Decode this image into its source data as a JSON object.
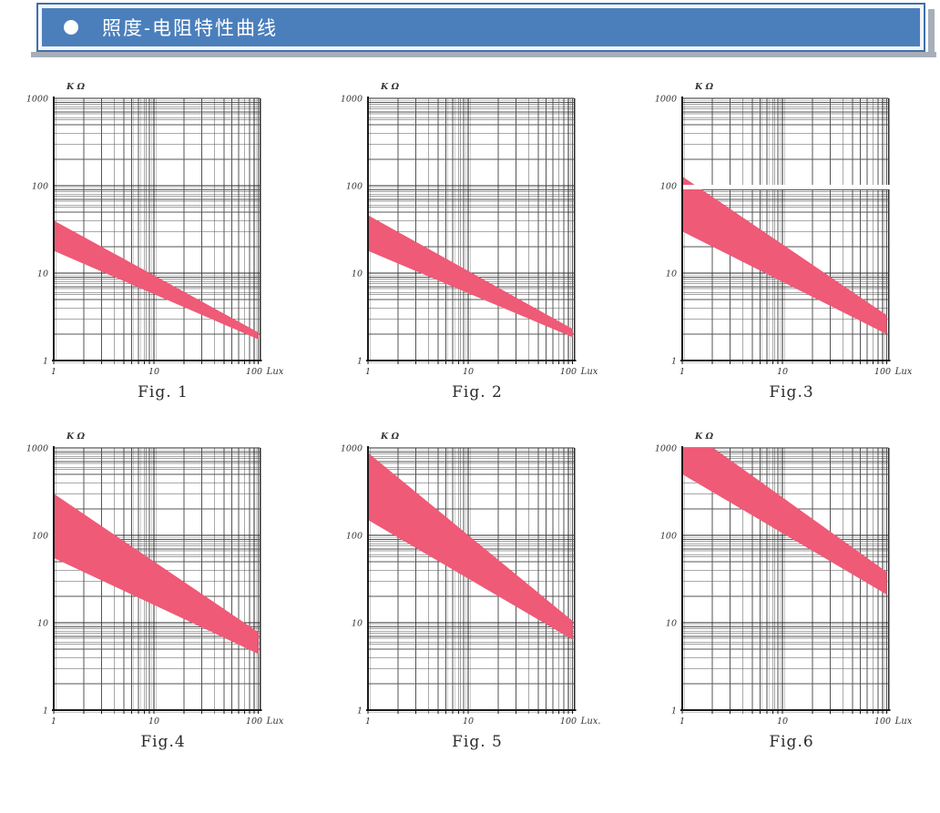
{
  "header": {
    "title": "照度-电阻特性曲线",
    "bar_color": "#4b7fbc",
    "border_color": "#3f6fae",
    "shadow_color": "#a7aeb9",
    "text_color": "#ffffff"
  },
  "chart_style": {
    "band_color": "#ef5a76",
    "grid_minor_color": "#555555",
    "grid_major_color": "#2b2b2b",
    "axis_color": "#1a1a1a",
    "label_color": "#333333"
  },
  "chart_data": [
    {
      "type": "area",
      "fig_label": "Fig. 1",
      "ylabel": "K Ω",
      "xlabel": "Lux",
      "x_tick_labels": [
        "1",
        "10",
        "100"
      ],
      "y_tick_labels": [
        "1000",
        "100",
        "10",
        "1"
      ],
      "xlim": [
        1,
        115
      ],
      "ylim": [
        1,
        1000
      ],
      "log_log": true,
      "grid": true,
      "band_x": [
        1,
        110
      ],
      "band_upper": [
        40,
        2.1
      ],
      "band_lower": [
        18,
        1.75
      ],
      "white_gap_at_y": null
    },
    {
      "type": "area",
      "fig_label": "Fig. 2",
      "ylabel": "K Ω",
      "xlabel": "Lux",
      "x_tick_labels": [
        "1",
        "10",
        "100"
      ],
      "y_tick_labels": [
        "1000",
        "100",
        "10",
        "1"
      ],
      "xlim": [
        1,
        115
      ],
      "ylim": [
        1,
        1000
      ],
      "log_log": true,
      "grid": true,
      "band_x": [
        1,
        110
      ],
      "band_upper": [
        46,
        2.3
      ],
      "band_lower": [
        18,
        1.85
      ],
      "white_gap_at_y": null
    },
    {
      "type": "area",
      "fig_label": "Fig.3",
      "ylabel": "K Ω",
      "xlabel": "Lux",
      "x_tick_labels": [
        "1",
        "10",
        "100"
      ],
      "y_tick_labels": [
        "1000",
        "100",
        "10",
        "1"
      ],
      "xlim": [
        1,
        115
      ],
      "ylim": [
        1,
        1000
      ],
      "log_log": true,
      "grid": true,
      "band_x": [
        1,
        110
      ],
      "band_upper": [
        128,
        3.3
      ],
      "band_lower": [
        30,
        2.0
      ],
      "white_gap_at_y": 100
    },
    {
      "type": "area",
      "fig_label": "Fig.4",
      "ylabel": "K Ω",
      "xlabel": "Lux",
      "x_tick_labels": [
        "1",
        "10",
        "100"
      ],
      "y_tick_labels": [
        "1000",
        "100",
        "10",
        "1"
      ],
      "xlim": [
        1,
        115
      ],
      "ylim": [
        1,
        1000
      ],
      "log_log": true,
      "grid": true,
      "band_x": [
        1,
        110
      ],
      "band_upper": [
        300,
        7.8
      ],
      "band_lower": [
        55,
        4.4
      ],
      "white_gap_at_y": null
    },
    {
      "type": "area",
      "fig_label": "Fig. 5",
      "ylabel": "K Ω",
      "xlabel": "Lux.",
      "x_tick_labels": [
        "1",
        "10",
        "100"
      ],
      "y_tick_labels": [
        "1000",
        "100",
        "10",
        "1"
      ],
      "xlim": [
        1,
        115
      ],
      "ylim": [
        1,
        1000
      ],
      "log_log": true,
      "grid": true,
      "band_x": [
        1,
        110
      ],
      "band_upper": [
        880,
        10.5
      ],
      "band_lower": [
        150,
        6.4
      ],
      "white_gap_at_y": null
    },
    {
      "type": "area",
      "fig_label": "Fig.6",
      "ylabel": "K Ω",
      "xlabel": "Lux",
      "x_tick_labels": [
        "1",
        "10",
        "100"
      ],
      "y_tick_labels": [
        "1000",
        "100",
        "10",
        "1"
      ],
      "xlim": [
        1,
        115
      ],
      "ylim": [
        1,
        1000
      ],
      "log_log": true,
      "grid": true,
      "band_x": [
        1,
        110
      ],
      "band_upper": [
        1800,
        38
      ],
      "band_lower": [
        500,
        21
      ],
      "white_gap_at_y": null
    }
  ]
}
